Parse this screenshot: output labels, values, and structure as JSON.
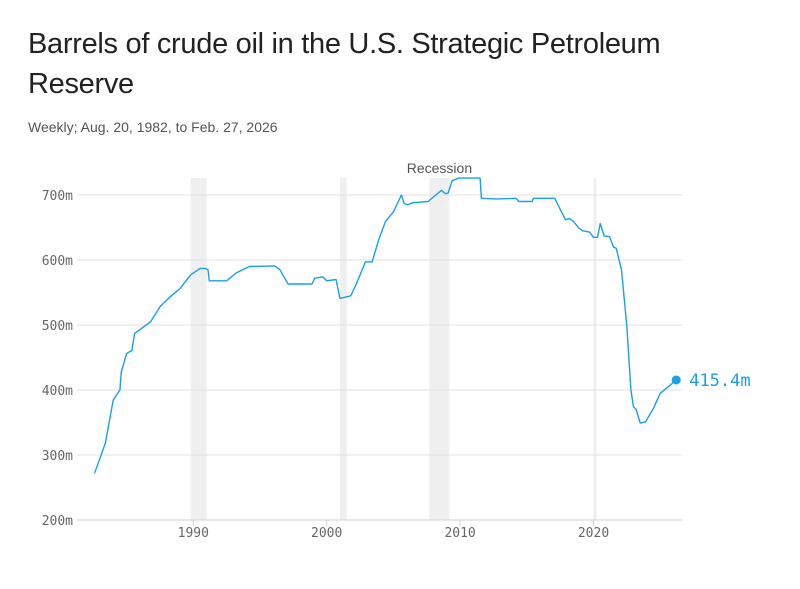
{
  "chart_data": {
    "type": "line",
    "title": "Barrels of crude oil in the U.S. Strategic Petroleum Reserve",
    "subtitle": "Weekly; Aug. 20, 1982, to Feb. 27, 2026",
    "xlabel": "",
    "ylabel": "",
    "ylim": [
      200,
      700
    ],
    "y_ticks": [
      {
        "value": 700,
        "label": "700m"
      },
      {
        "value": 600,
        "label": "600m"
      },
      {
        "value": 500,
        "label": "500m"
      },
      {
        "value": 400,
        "label": "400m"
      },
      {
        "value": 300,
        "label": "300m"
      },
      {
        "value": 200,
        "label": "200m"
      }
    ],
    "x_ticks": [
      {
        "value": 1990,
        "label": "1990"
      },
      {
        "value": 2000,
        "label": "2000"
      },
      {
        "value": 2010,
        "label": "2010"
      },
      {
        "value": 2020,
        "label": "2020"
      }
    ],
    "grid": true,
    "line_color": "#1a9fe8",
    "recession_color": "#efefef",
    "recession_label": "Recession",
    "recessions": [
      [
        1989.8,
        1991.0
      ],
      [
        2001.0,
        2001.5
      ],
      [
        2007.7,
        2009.2
      ],
      [
        2020.0,
        2020.2
      ]
    ],
    "end_label": "415.4m",
    "series": [
      {
        "x": [
          1982.6,
          1983.4,
          1984.0,
          1984.5,
          1984.6,
          1985.0,
          1985.4,
          1985.6,
          1986.8,
          1987.5,
          1988.3,
          1989.0,
          1989.8,
          1990.5,
          1990.9,
          1991.1,
          1991.2,
          1992.5,
          1993.2,
          1994.2,
          1996.1,
          1996.5,
          1997.1,
          1998.9,
          1999.1,
          1999.7,
          2000.0,
          2000.7,
          2001.0,
          2001.8,
          2002.2,
          2002.9,
          2003.4,
          2003.9,
          2004.4,
          2005.0,
          2005.6,
          2005.8,
          2006.1,
          2006.4,
          2007.6,
          2008.6,
          2008.9,
          2009.1,
          2009.4,
          2009.9,
          2011.5,
          2011.6,
          2012.7,
          2014.2,
          2014.4,
          2015.4,
          2015.5,
          2017.1,
          2017.5,
          2017.9,
          2018.2,
          2018.5,
          2018.9,
          2019.2,
          2019.7,
          2020.0,
          2020.3,
          2020.5,
          2020.8,
          2021.2,
          2021.5,
          2021.7,
          2022.1,
          2022.5,
          2022.8,
          2023.0,
          2023.2,
          2023.5,
          2023.9,
          2024.5,
          2025.0,
          2025.6,
          2026.2
        ],
        "y": [
          272,
          318,
          385,
          400,
          428,
          456,
          461,
          487,
          505,
          528,
          544,
          556,
          577,
          587,
          587,
          585,
          568,
          568,
          580,
          590,
          591,
          585,
          563,
          563,
          572,
          574,
          568,
          570,
          541,
          545,
          562,
          597,
          597,
          631,
          659,
          674,
          700,
          687,
          685,
          688,
          690,
          707,
          702,
          703,
          722,
          726,
          726,
          695,
          694,
          695,
          690,
          690,
          695,
          695,
          678,
          662,
          664,
          659,
          649,
          645,
          643,
          635,
          635,
          656,
          637,
          636,
          620,
          618,
          585,
          497,
          400,
          374,
          370,
          349,
          351,
          372,
          395,
          405,
          415.4
        ]
      }
    ]
  }
}
